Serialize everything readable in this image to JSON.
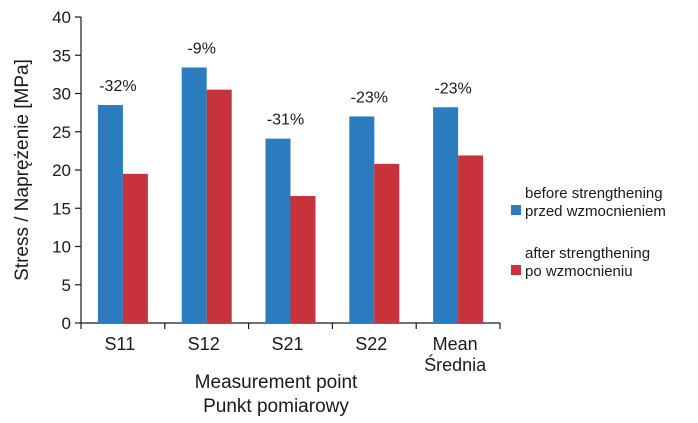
{
  "chart_data": {
    "type": "bar",
    "categories": [
      [
        "S11"
      ],
      [
        "S12"
      ],
      [
        "S21"
      ],
      [
        "S22"
      ],
      [
        "Mean",
        "Średnia"
      ]
    ],
    "series": [
      {
        "name": "before strengthening / przed wzmocnieniem",
        "legend_lines": [
          "before strengthening",
          "przed wzmocnieniem"
        ],
        "color": "#2b7bbf",
        "values": [
          28.5,
          33.4,
          24.1,
          27.0,
          28.2
        ]
      },
      {
        "name": "after strengthening / po wzmocnieniu",
        "legend_lines": [
          "after strengthening",
          "po wzmocnieniu"
        ],
        "color": "#c8323a",
        "values": [
          19.5,
          30.5,
          16.6,
          20.8,
          21.9
        ]
      }
    ],
    "annotations": [
      "-32%",
      "-9%",
      "-31%",
      "-23%",
      "-23%"
    ],
    "xlabel": [
      "Measurement point",
      "Punkt pomiarowy"
    ],
    "ylabel": "Stress / Naprężenie [MPa]",
    "ylim": [
      0,
      40
    ],
    "yticks": [
      0,
      5,
      10,
      15,
      20,
      25,
      30,
      35,
      40
    ],
    "grid": false,
    "legend": "right"
  }
}
